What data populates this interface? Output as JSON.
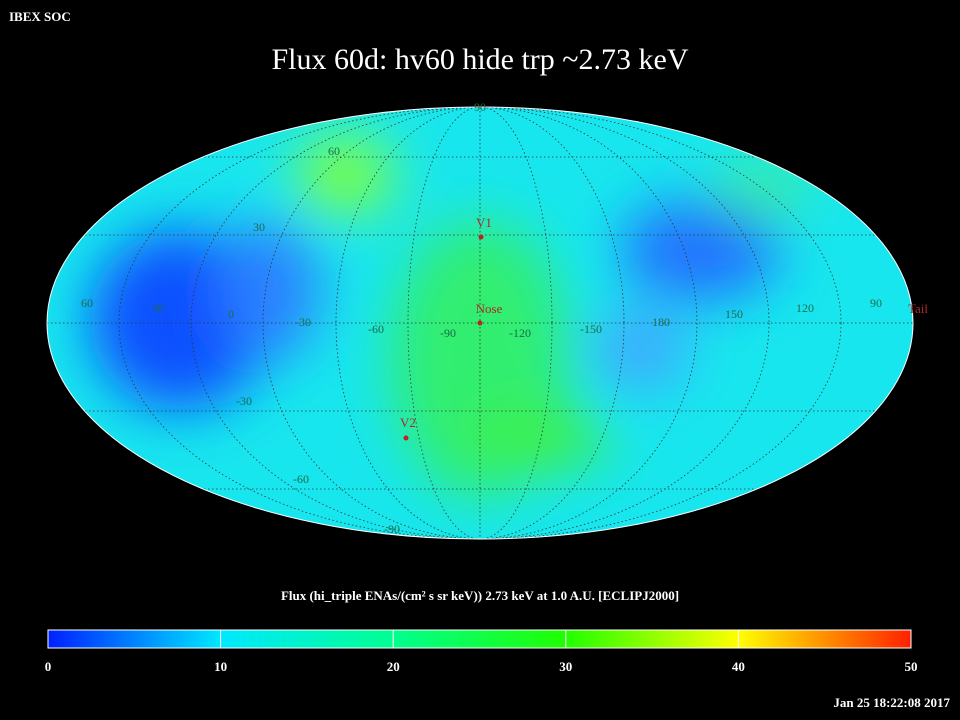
{
  "header": {
    "org": "IBEX SOC",
    "title": "Flux   60d: hv60 hide trp ~2.73 keV"
  },
  "map": {
    "latitude_labels": [
      "90",
      "60",
      "30",
      "-30",
      "-60",
      "-90"
    ],
    "longitude_labels": [
      "60",
      "30",
      "0",
      "-30",
      "-60",
      "-90",
      "-120",
      "-150",
      "180",
      "150",
      "120",
      "90"
    ],
    "markers": [
      {
        "label": "V1"
      },
      {
        "label": "Nose"
      },
      {
        "label": "Tail"
      },
      {
        "label": "V2"
      }
    ]
  },
  "colorbar": {
    "label": "Flux (hi_triple ENAs/(cm² s sr keV))  2.73 keV at 1.0 A.U. [ECLIPJ2000]",
    "ticks": [
      0,
      10,
      20,
      30,
      40,
      50
    ]
  },
  "timestamp": "Jan 25 18:22:08 2017"
}
